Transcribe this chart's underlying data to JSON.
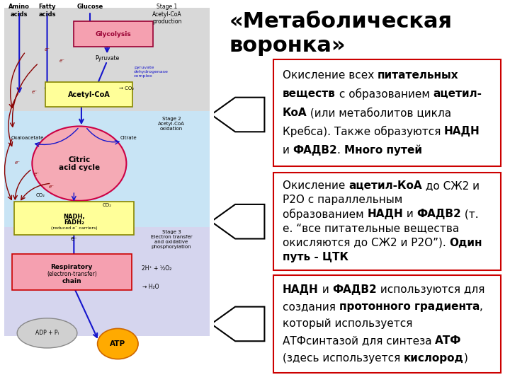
{
  "background_color": "#ffffff",
  "box_border_color": "#cc0000",
  "box_fill_color": "#ffffff",
  "stage1_color": "#d8d8d8",
  "stage2_color": "#c8e4f5",
  "stage3_color": "#d5d5ee",
  "glycolysis_color": "#f5a0b0",
  "acetyl_color": "#ffff99",
  "nadh_color": "#ffff99",
  "resp_color": "#f5a0b0",
  "citric_color": "#f5aab5",
  "atp_color": "#ffaa00",
  "adp_color": "#d0d0d0",
  "blue": "#1515cc",
  "red": "#880000",
  "dark_red": "#990033",
  "title": "«Метаболическая\nворонка»",
  "title_fontsize": 22,
  "text_fontsize": 11,
  "box1_lines": [
    [
      [
        "Окисление всех ",
        false
      ],
      [
        "питательных",
        true
      ]
    ],
    [
      [
        "веществ",
        true
      ],
      [
        " с образованием ",
        false
      ],
      [
        "ацетил-",
        true
      ]
    ],
    [
      [
        "КоА",
        true
      ],
      [
        " (или метаболитов цикла",
        false
      ]
    ],
    [
      [
        "Кребса). Также образуются ",
        false
      ],
      [
        "НАДН",
        true
      ]
    ],
    [
      [
        "и ",
        false
      ],
      [
        "ФАДВ2",
        true
      ],
      [
        ". ",
        false
      ],
      [
        "Много путей",
        true
      ]
    ]
  ],
  "box2_lines": [
    [
      [
        "Окисление ",
        false
      ],
      [
        "ацетил-КоА",
        true
      ],
      [
        " до СЖ2 и",
        false
      ]
    ],
    [
      [
        "Р2О с параллельным",
        false
      ]
    ],
    [
      [
        "образованием ",
        false
      ],
      [
        "НАДН",
        true
      ],
      [
        " и ",
        false
      ],
      [
        "ФАДВ2",
        true
      ],
      [
        " (т.",
        false
      ]
    ],
    [
      [
        "е. “все питательные вещества",
        false
      ]
    ],
    [
      [
        "окисляются до СЖ2 и Р2О”). ",
        false
      ],
      [
        "Один",
        true
      ]
    ],
    [
      [
        "путь - ЦТК",
        true
      ]
    ]
  ],
  "box3_lines": [
    [
      [
        "НАДН",
        true
      ],
      [
        " и ",
        false
      ],
      [
        "ФАДВ2",
        true
      ],
      [
        " используются для",
        false
      ]
    ],
    [
      [
        "создания ",
        false
      ],
      [
        "протонного градиента",
        true
      ],
      [
        ",",
        false
      ]
    ],
    [
      [
        "который используется",
        false
      ]
    ],
    [
      [
        "АТФсинтазой для синтеза ",
        false
      ],
      [
        "АТФ",
        true
      ]
    ],
    [
      [
        "(здесь используется ",
        false
      ],
      [
        "кислород",
        true
      ],
      [
        ")",
        false
      ]
    ]
  ]
}
